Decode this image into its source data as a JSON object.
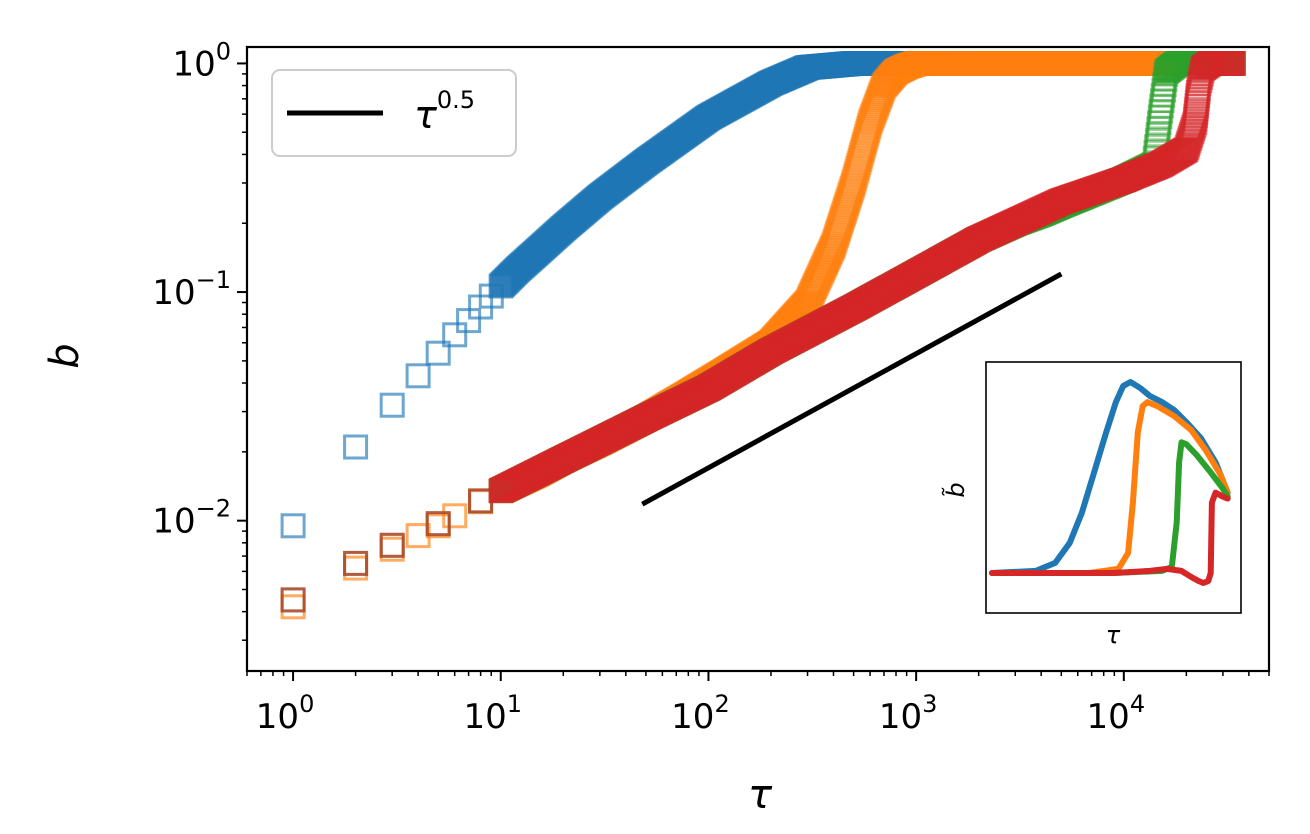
{
  "chart_data": {
    "type": "scatter",
    "title": "",
    "xlabel": "τ",
    "ylabel": "b",
    "xscale": "log",
    "yscale": "log",
    "xlim": [
      0.6,
      50000
    ],
    "ylim": [
      0.0022,
      1.18
    ],
    "x_ticks": [
      {
        "value": 1,
        "base": "10",
        "exp": "0"
      },
      {
        "value": 10,
        "base": "10",
        "exp": "1"
      },
      {
        "value": 100,
        "base": "10",
        "exp": "2"
      },
      {
        "value": 1000,
        "base": "10",
        "exp": "3"
      },
      {
        "value": 10000,
        "base": "10",
        "exp": "4"
      }
    ],
    "y_ticks": [
      {
        "value": 0.01,
        "base": "10",
        "exp": "−2"
      },
      {
        "value": 0.1,
        "base": "10",
        "exp": "−1"
      },
      {
        "value": 1,
        "base": "10",
        "exp": "0"
      }
    ],
    "legend": {
      "position": "top-left",
      "entries": [
        {
          "label_base": "τ",
          "label_exp": "0.5",
          "color": "#000000"
        }
      ]
    },
    "reference_line": {
      "label": "τ^0.5",
      "slope": 0.5,
      "x": [
        48,
        5000
      ],
      "y": [
        0.0118,
        0.12
      ],
      "color": "#000000"
    },
    "series": [
      {
        "name": "series-1",
        "color": "#1f77b4",
        "tau": [
          1,
          2,
          3,
          4,
          5,
          6,
          7,
          8,
          9,
          10,
          12,
          15,
          20,
          30,
          50,
          100,
          200,
          300,
          500,
          1000,
          2000,
          5000,
          10000,
          20000,
          34000
        ],
        "b": [
          0.0095,
          0.021,
          0.032,
          0.043,
          0.054,
          0.065,
          0.075,
          0.086,
          0.096,
          0.106,
          0.125,
          0.15,
          0.19,
          0.26,
          0.37,
          0.58,
          0.82,
          0.96,
          1.0,
          1.0,
          1.0,
          1.0,
          1.0,
          1.0,
          1.0
        ]
      },
      {
        "name": "series-2",
        "color": "#ff7f0e",
        "tau": [
          1,
          2,
          3,
          4,
          5,
          6,
          8,
          10,
          15,
          20,
          30,
          50,
          80,
          120,
          200,
          300,
          400,
          500,
          600,
          700,
          800,
          900,
          1000,
          2000,
          5000,
          10000,
          20000,
          34000
        ],
        "b": [
          0.0042,
          0.0062,
          0.0075,
          0.0086,
          0.0095,
          0.0105,
          0.0121,
          0.0135,
          0.016,
          0.0185,
          0.022,
          0.028,
          0.036,
          0.045,
          0.06,
          0.09,
          0.16,
          0.3,
          0.55,
          0.8,
          0.92,
          0.97,
          1.0,
          1.0,
          1.0,
          1.0,
          1.0,
          1.0
        ]
      },
      {
        "name": "series-3",
        "color": "#2ca02c",
        "tau": [
          1,
          2,
          3,
          5,
          8,
          10,
          20,
          50,
          100,
          200,
          500,
          1000,
          2000,
          3000,
          4000,
          5000,
          10000,
          14000,
          15000,
          16000,
          18000,
          20000,
          34000
        ],
        "b": [
          0.0045,
          0.0065,
          0.0078,
          0.0097,
          0.0122,
          0.0135,
          0.0185,
          0.028,
          0.038,
          0.055,
          0.085,
          0.12,
          0.17,
          0.2,
          0.22,
          0.24,
          0.31,
          0.36,
          0.6,
          0.92,
          1.0,
          1.0,
          1.0
        ]
      },
      {
        "name": "series-4",
        "color": "#d62728",
        "tau": [
          1,
          2,
          3,
          5,
          8,
          10,
          20,
          50,
          100,
          200,
          500,
          1000,
          2000,
          5000,
          10000,
          15000,
          20000,
          22000,
          23000,
          24000,
          26000,
          34000
        ],
        "b": [
          0.0045,
          0.0065,
          0.0078,
          0.0097,
          0.0122,
          0.0135,
          0.0185,
          0.028,
          0.038,
          0.055,
          0.085,
          0.12,
          0.17,
          0.25,
          0.31,
          0.36,
          0.42,
          0.55,
          0.8,
          0.95,
          1.0,
          1.0
        ]
      }
    ],
    "inset": {
      "position": "bottom-right",
      "xlabel": "τ",
      "ylabel": "b̃",
      "series": [
        {
          "name": "series-1",
          "color": "#1f77b4",
          "x": [
            0,
            0.18,
            0.26,
            0.32,
            0.37,
            0.42,
            0.47,
            0.51,
            0.54,
            0.57,
            0.61,
            0.65,
            0.7,
            0.75,
            0.8,
            0.86,
            0.92,
            0.97
          ],
          "y": [
            0.05,
            0.06,
            0.1,
            0.2,
            0.35,
            0.55,
            0.75,
            0.9,
            0.98,
            1.0,
            0.97,
            0.93,
            0.9,
            0.86,
            0.8,
            0.72,
            0.6,
            0.45
          ]
        },
        {
          "name": "series-2",
          "color": "#ff7f0e",
          "x": [
            0,
            0.4,
            0.52,
            0.56,
            0.58,
            0.6,
            0.62,
            0.64,
            0.68,
            0.75,
            0.82,
            0.88,
            0.94,
            0.97
          ],
          "y": [
            0.05,
            0.05,
            0.07,
            0.15,
            0.4,
            0.75,
            0.88,
            0.9,
            0.88,
            0.83,
            0.76,
            0.66,
            0.54,
            0.45
          ]
        },
        {
          "name": "series-3",
          "color": "#2ca02c",
          "x": [
            0,
            0.5,
            0.7,
            0.74,
            0.76,
            0.77,
            0.78,
            0.8,
            0.84,
            0.9,
            0.95,
            0.97
          ],
          "y": [
            0.05,
            0.05,
            0.06,
            0.08,
            0.3,
            0.6,
            0.7,
            0.69,
            0.64,
            0.55,
            0.47,
            0.43
          ]
        },
        {
          "name": "series-4",
          "color": "#d62728",
          "x": [
            0,
            0.3,
            0.5,
            0.65,
            0.72,
            0.78,
            0.82,
            0.85,
            0.87,
            0.89,
            0.9,
            0.905,
            0.92,
            0.95,
            0.97
          ],
          "y": [
            0.05,
            0.05,
            0.05,
            0.06,
            0.07,
            0.06,
            0.03,
            0.01,
            0.0,
            0.01,
            0.05,
            0.4,
            0.45,
            0.43,
            0.42
          ]
        }
      ]
    }
  }
}
